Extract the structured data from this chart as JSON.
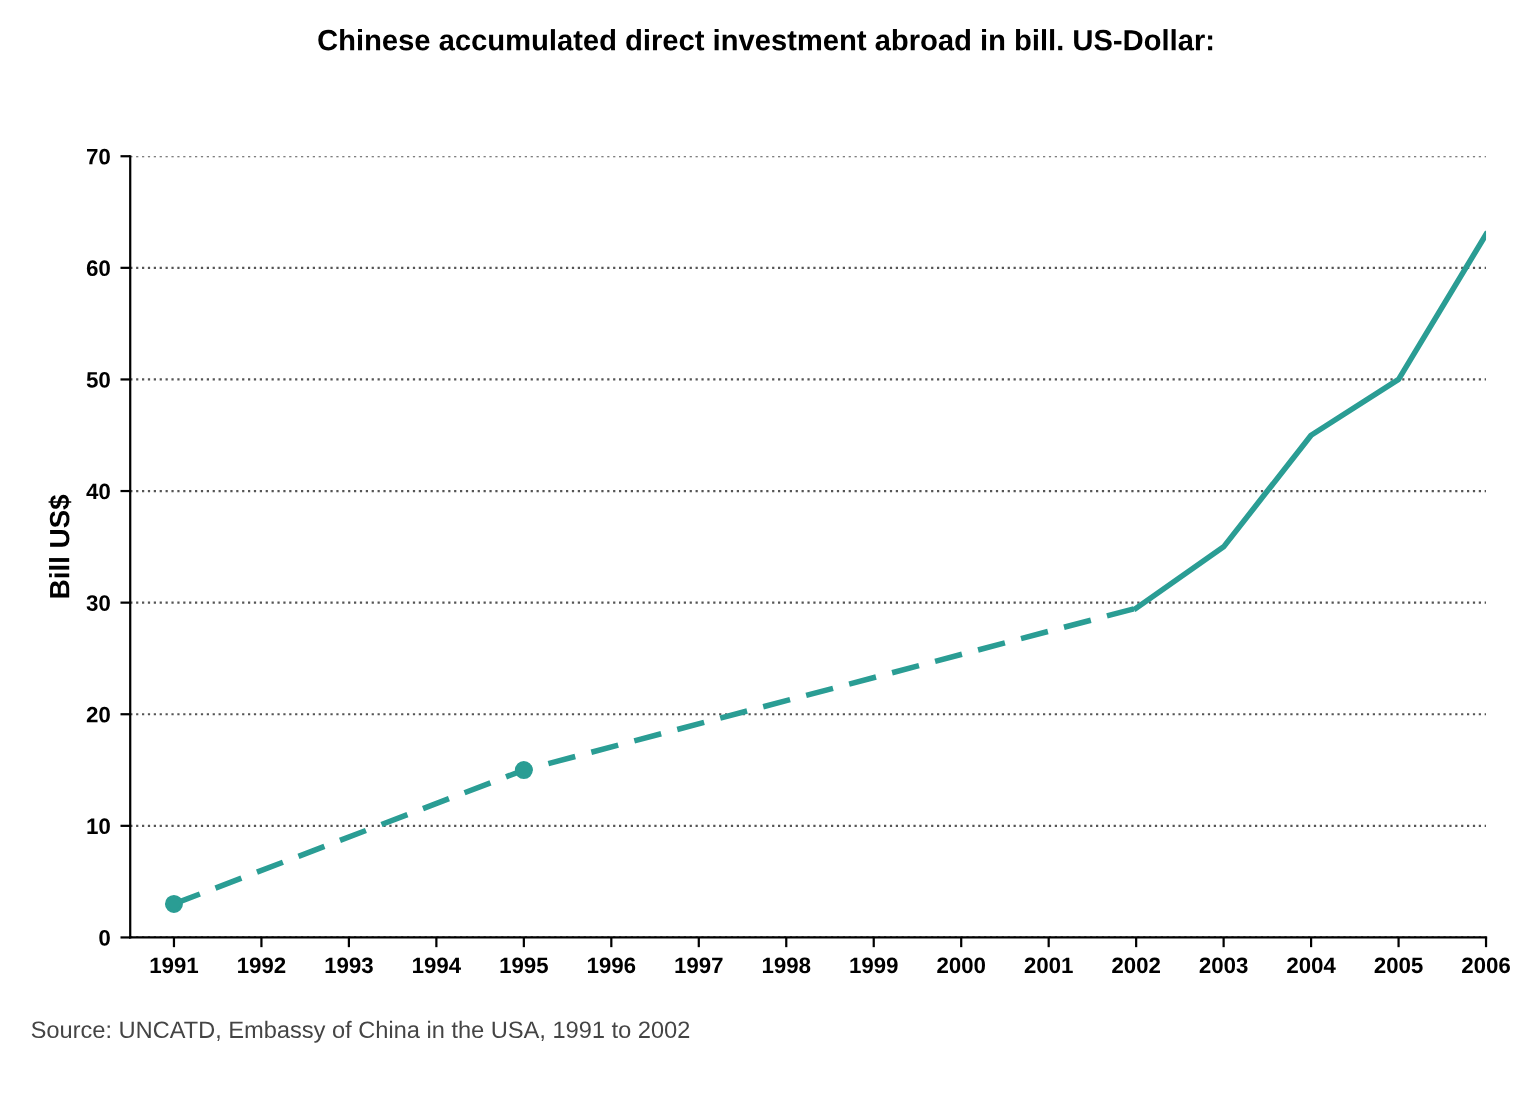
{
  "chart_data": {
    "type": "line",
    "title": "Chinese accumulated direct investment abroad in bill. US-Dollar:",
    "ylabel": "Bill US$",
    "categories": [
      "1991",
      "1992",
      "1993",
      "1994",
      "1995",
      "1996",
      "1997",
      "1998",
      "1999",
      "2000",
      "2001",
      "2002",
      "2003",
      "2004",
      "2005",
      "2006"
    ],
    "series": [
      {
        "color": "#2a9d94",
        "line_style": "dashed",
        "marker": "none",
        "values": [
          3,
          null,
          null,
          null,
          15,
          null,
          null,
          null,
          null,
          null,
          null,
          29.5,
          null,
          null,
          null,
          null
        ]
      },
      {
        "color": "#2a9d94",
        "line_style": "solid",
        "marker": "none",
        "values": [
          null,
          null,
          null,
          null,
          null,
          null,
          null,
          null,
          null,
          null,
          null,
          29.5,
          35,
          45,
          50,
          63
        ]
      },
      {
        "type": "scatter",
        "color": "#2a9d94",
        "marker": "circle",
        "values": [
          3,
          null,
          null,
          null,
          15,
          null,
          null,
          null,
          null,
          null,
          null,
          null,
          null,
          null,
          null,
          null
        ]
      }
    ],
    "ylim": [
      0,
      70
    ],
    "yticks": [
      0,
      10,
      20,
      30,
      40,
      50,
      60,
      70
    ],
    "grid": "y",
    "annotations": [
      "Source: UNCATD, Embassy of China in the USA, 1991 to 2002"
    ]
  }
}
